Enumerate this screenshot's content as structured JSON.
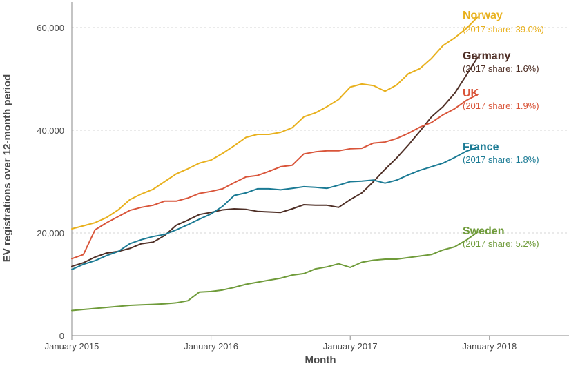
{
  "chart_data": {
    "type": "line",
    "title": "",
    "xlabel": "Month",
    "ylabel": "EV registrations over 12-month period",
    "x_ticks": [
      "January 2015",
      "January 2016",
      "January 2017",
      "January 2018"
    ],
    "y_ticks": [
      "0",
      "20,000",
      "40,000",
      "60,000"
    ],
    "ylim": [
      0,
      65000
    ],
    "grid": "horizontal dashed",
    "legend": "direct labels at line ends (right)",
    "x": [
      "Jan 2015",
      "Feb 2015",
      "Mar 2015",
      "Apr 2015",
      "May 2015",
      "Jun 2015",
      "Jul 2015",
      "Aug 2015",
      "Sep 2015",
      "Oct 2015",
      "Nov 2015",
      "Dec 2015",
      "Jan 2016",
      "Feb 2016",
      "Mar 2016",
      "Apr 2016",
      "May 2016",
      "Jun 2016",
      "Jul 2016",
      "Aug 2016",
      "Sep 2016",
      "Oct 2016",
      "Nov 2016",
      "Dec 2016",
      "Jan 2017",
      "Feb 2017",
      "Mar 2017",
      "Apr 2017",
      "May 2017",
      "Jun 2017",
      "Jul 2017",
      "Aug 2017",
      "Sep 2017",
      "Oct 2017",
      "Nov 2017",
      "Dec 2017"
    ],
    "series": [
      {
        "name": "Norway",
        "label": "(2017 share: 39.0%)",
        "color": "#e8b01c",
        "values": [
          20800,
          21400,
          22000,
          23000,
          24500,
          26500,
          27600,
          28500,
          30000,
          31500,
          32500,
          33600,
          34200,
          35500,
          37000,
          38600,
          39200,
          39200,
          39600,
          40500,
          42600,
          43400,
          44600,
          46000,
          48400,
          49000,
          48700,
          47600,
          48800,
          51000,
          52000,
          54000,
          56500,
          58000,
          59800,
          62100
        ]
      },
      {
        "name": "Germany",
        "label": "(2017 share: 1.6%)",
        "color": "#4f2f26",
        "values": [
          13500,
          14200,
          15300,
          16100,
          16400,
          17000,
          17900,
          18200,
          19500,
          21500,
          22500,
          23600,
          24000,
          24500,
          24700,
          24600,
          24200,
          24100,
          24000,
          24700,
          25500,
          25400,
          25400,
          25000,
          26500,
          27800,
          30000,
          32400,
          34600,
          37100,
          39800,
          42600,
          44600,
          47200,
          50700,
          54300
        ]
      },
      {
        "name": "UK",
        "label": "(2017 share: 1.9%)",
        "color": "#d9553a",
        "values": [
          15000,
          15800,
          20600,
          22000,
          23200,
          24400,
          25000,
          25400,
          26200,
          26200,
          26800,
          27700,
          28100,
          28600,
          29800,
          30900,
          31200,
          32000,
          32900,
          33200,
          35400,
          35800,
          36000,
          36000,
          36400,
          36500,
          37500,
          37700,
          38400,
          39400,
          40600,
          41500,
          43000,
          44200,
          45800,
          47000
        ]
      },
      {
        "name": "France",
        "label": "(2017 share: 1.8%)",
        "color": "#1a7a94",
        "values": [
          12900,
          13900,
          14600,
          15600,
          16400,
          17900,
          18700,
          19300,
          19700,
          20600,
          21600,
          22700,
          23700,
          25200,
          27300,
          27800,
          28600,
          28600,
          28400,
          28700,
          29000,
          28900,
          28700,
          29300,
          30000,
          30100,
          30300,
          29700,
          30300,
          31300,
          32200,
          32900,
          33600,
          34700,
          35900,
          36700
        ]
      },
      {
        "name": "Sweden",
        "label": "(2017 share: 5.2%)",
        "color": "#6f9b3a",
        "values": [
          4900,
          5100,
          5300,
          5500,
          5700,
          5900,
          6000,
          6100,
          6200,
          6400,
          6800,
          8500,
          8600,
          8900,
          9400,
          10000,
          10400,
          10800,
          11200,
          11800,
          12100,
          13000,
          13400,
          14000,
          13300,
          14300,
          14700,
          14900,
          14900,
          15200,
          15500,
          15800,
          16700,
          17300,
          18600,
          20200
        ]
      }
    ]
  }
}
